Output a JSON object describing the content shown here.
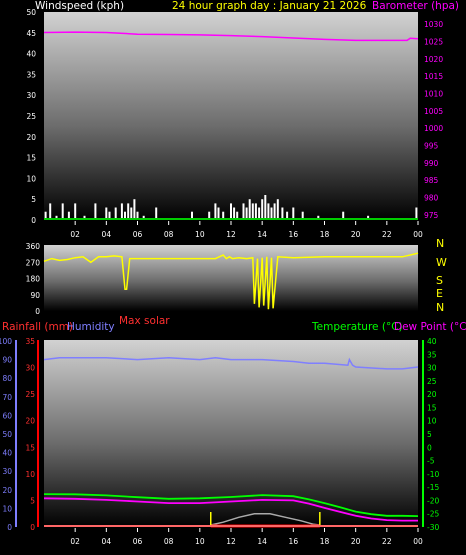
{
  "colors": {
    "background": "#000000",
    "panel_top": "#cfcfcf",
    "panel_bottom": "#000000",
    "axis_text": "#ffffff",
    "windspeed": "#ffffff",
    "barometer": "#ff00ff",
    "wind_direction": "#ffff00",
    "rainfall": "#ff0000",
    "humidity": "#7f7fff",
    "temperature": "#00ff00",
    "dew_point": "#ff00ff",
    "solar": "#aaaaaa",
    "solar_max": "#ff0000",
    "sun_marker": "#ffff00",
    "direction_labels": "#ffff00"
  },
  "chart_data": [
    {
      "type": "line",
      "title": "24 hour graph day : January 21 2026",
      "x_ticks": [
        "02",
        "04",
        "06",
        "08",
        "10",
        "12",
        "14",
        "16",
        "18",
        "20",
        "22",
        "00"
      ],
      "xlim": [
        0,
        24
      ],
      "series": [
        {
          "name": "Windspeed (kph)",
          "axis": "left",
          "ylim": [
            0,
            50
          ],
          "y_ticks": [
            "0",
            "5",
            "10",
            "15",
            "20",
            "25",
            "30",
            "35",
            "40",
            "45",
            "50"
          ],
          "style": "bars",
          "x": [
            0.1,
            0.4,
            0.8,
            1.2,
            1.6,
            2.0,
            2.6,
            3.3,
            4.0,
            4.2,
            4.6,
            5.0,
            5.2,
            5.4,
            5.6,
            5.8,
            6.0,
            6.4,
            7.2,
            9.5,
            10.6,
            11.0,
            11.2,
            11.5,
            12.0,
            12.2,
            12.4,
            12.8,
            13.0,
            13.2,
            13.4,
            13.6,
            13.8,
            14.0,
            14.2,
            14.4,
            14.6,
            14.8,
            15.0,
            15.3,
            15.6,
            16.0,
            16.6,
            17.6,
            19.2,
            20.8,
            23.9
          ],
          "values": [
            2,
            4,
            1,
            4,
            2,
            4,
            1,
            4,
            3,
            2,
            3,
            4,
            2,
            4,
            3,
            5,
            2,
            1,
            3,
            2,
            2,
            4,
            3,
            2,
            4,
            3,
            2,
            4,
            3,
            5,
            4,
            4,
            3,
            5,
            6,
            4,
            3,
            4,
            5,
            3,
            2,
            3,
            2,
            1,
            2,
            1,
            3
          ]
        },
        {
          "name": "Barometer (hpa)",
          "axis": "right",
          "ylim": [
            973.5,
            1033.5
          ],
          "y_ticks": [
            "975",
            "980",
            "985",
            "990",
            "995",
            "1000",
            "1005",
            "1010",
            "1015",
            "1020",
            "1025",
            "1030"
          ],
          "x": [
            0,
            2,
            4,
            6,
            8,
            10,
            12,
            14,
            16,
            18,
            20,
            22,
            23.3,
            23.5,
            24
          ],
          "values": [
            1027.6,
            1027.7,
            1027.6,
            1027.1,
            1027.0,
            1026.9,
            1026.7,
            1026.4,
            1026.0,
            1025.6,
            1025.3,
            1025.3,
            1025.3,
            1025.9,
            1025.8
          ]
        }
      ]
    },
    {
      "type": "line",
      "x_ticks": [],
      "xlim": [
        0,
        24
      ],
      "series": [
        {
          "name": "Wind direction",
          "axis": "left",
          "ylim": [
            0,
            360
          ],
          "y_ticks": [
            "0",
            "90",
            "180",
            "270",
            "360"
          ],
          "x": [
            0,
            0.5,
            1.0,
            1.5,
            2.0,
            2.5,
            3.0,
            3.5,
            4.0,
            4.5,
            5.0,
            5.2,
            5.3,
            5.5,
            6.0,
            8.0,
            10.0,
            11.0,
            11.5,
            11.7,
            11.9,
            12.1,
            12.5,
            13.0,
            13.4,
            13.5,
            13.7,
            13.8,
            14.0,
            14.1,
            14.3,
            14.4,
            14.6,
            14.7,
            15.0,
            16.0,
            18.0,
            20.0,
            22.0,
            23.0,
            24.0
          ],
          "values": [
            275,
            290,
            280,
            285,
            295,
            300,
            270,
            300,
            300,
            305,
            300,
            120,
            120,
            290,
            290,
            290,
            290,
            290,
            310,
            290,
            300,
            290,
            295,
            290,
            295,
            40,
            290,
            20,
            295,
            30,
            300,
            10,
            295,
            15,
            300,
            295,
            300,
            300,
            300,
            300,
            320
          ]
        }
      ],
      "direction_labels": [
        "N",
        "W",
        "S",
        "E",
        "N"
      ]
    },
    {
      "type": "line",
      "x_ticks": [
        "02",
        "04",
        "06",
        "08",
        "10",
        "12",
        "14",
        "16",
        "18",
        "20",
        "22",
        "00"
      ],
      "xlim": [
        0,
        24
      ],
      "annotations": {
        "max_solar": "Max solar"
      },
      "sun_markers": [
        10.7,
        17.7
      ],
      "series": [
        {
          "name": "Rainfall (mm)",
          "axis": "left-inner",
          "ylim": [
            0,
            35
          ],
          "y_ticks": [
            "0",
            "5",
            "10",
            "15",
            "20",
            "25",
            "30",
            "35"
          ],
          "x": [
            0,
            24
          ],
          "values": [
            0,
            0
          ]
        },
        {
          "name": "Humidity",
          "axis": "left-outer",
          "ylim": [
            0,
            100
          ],
          "y_ticks": [
            "0",
            "10",
            "20",
            "30",
            "40",
            "50",
            "60",
            "70",
            "80",
            "90",
            "100"
          ],
          "x": [
            0,
            1,
            2,
            4,
            6,
            8,
            10,
            11,
            12,
            14,
            16,
            17,
            18,
            19.5,
            19.6,
            19.8,
            20.0,
            22.0,
            23.0,
            24
          ],
          "values": [
            90,
            91,
            91,
            91,
            90,
            91,
            90,
            91,
            90,
            90,
            89,
            88,
            88,
            87,
            90,
            87,
            86,
            85,
            85,
            86
          ]
        },
        {
          "name": "Temperature (°C)",
          "axis": "right",
          "ylim": [
            -30,
            40
          ],
          "y_ticks": [
            "-30",
            "-25",
            "-20",
            "-15",
            "-10",
            "-5",
            "0",
            "5",
            "10",
            "15",
            "20",
            "25",
            "30",
            "35",
            "40"
          ],
          "x": [
            0,
            2,
            4,
            6,
            8,
            10,
            12,
            14,
            16,
            17,
            18,
            19,
            20,
            21,
            22,
            23,
            24
          ],
          "values": [
            -17.6,
            -17.7,
            -18.1,
            -18.8,
            -19.4,
            -19.2,
            -18.7,
            -18.0,
            -18.4,
            -19.6,
            -21.0,
            -22.6,
            -24.2,
            -25.2,
            -25.8,
            -25.8,
            -25.9
          ]
        },
        {
          "name": "Dew Point (°C)",
          "axis": "right",
          "ylim": [
            -30,
            40
          ],
          "y_ticks": [],
          "x": [
            0,
            2,
            4,
            6,
            8,
            10,
            12,
            14,
            16,
            17,
            18,
            19,
            20,
            21,
            22,
            23,
            24
          ],
          "values": [
            -19.2,
            -19.4,
            -19.8,
            -20.4,
            -21.0,
            -21.0,
            -20.4,
            -19.8,
            -20.0,
            -21.2,
            -22.8,
            -24.3,
            -25.8,
            -26.8,
            -27.4,
            -27.6,
            -27.6
          ]
        },
        {
          "name": "Solar",
          "axis": "none",
          "x": [
            10.7,
            11.5,
            12.5,
            13.5,
            14.5,
            15.5,
            16.5,
            17.3,
            17.7
          ],
          "values": [
            0.0,
            0.2,
            0.55,
            0.8,
            0.8,
            0.55,
            0.3,
            0.05,
            0.0
          ]
        }
      ]
    }
  ]
}
